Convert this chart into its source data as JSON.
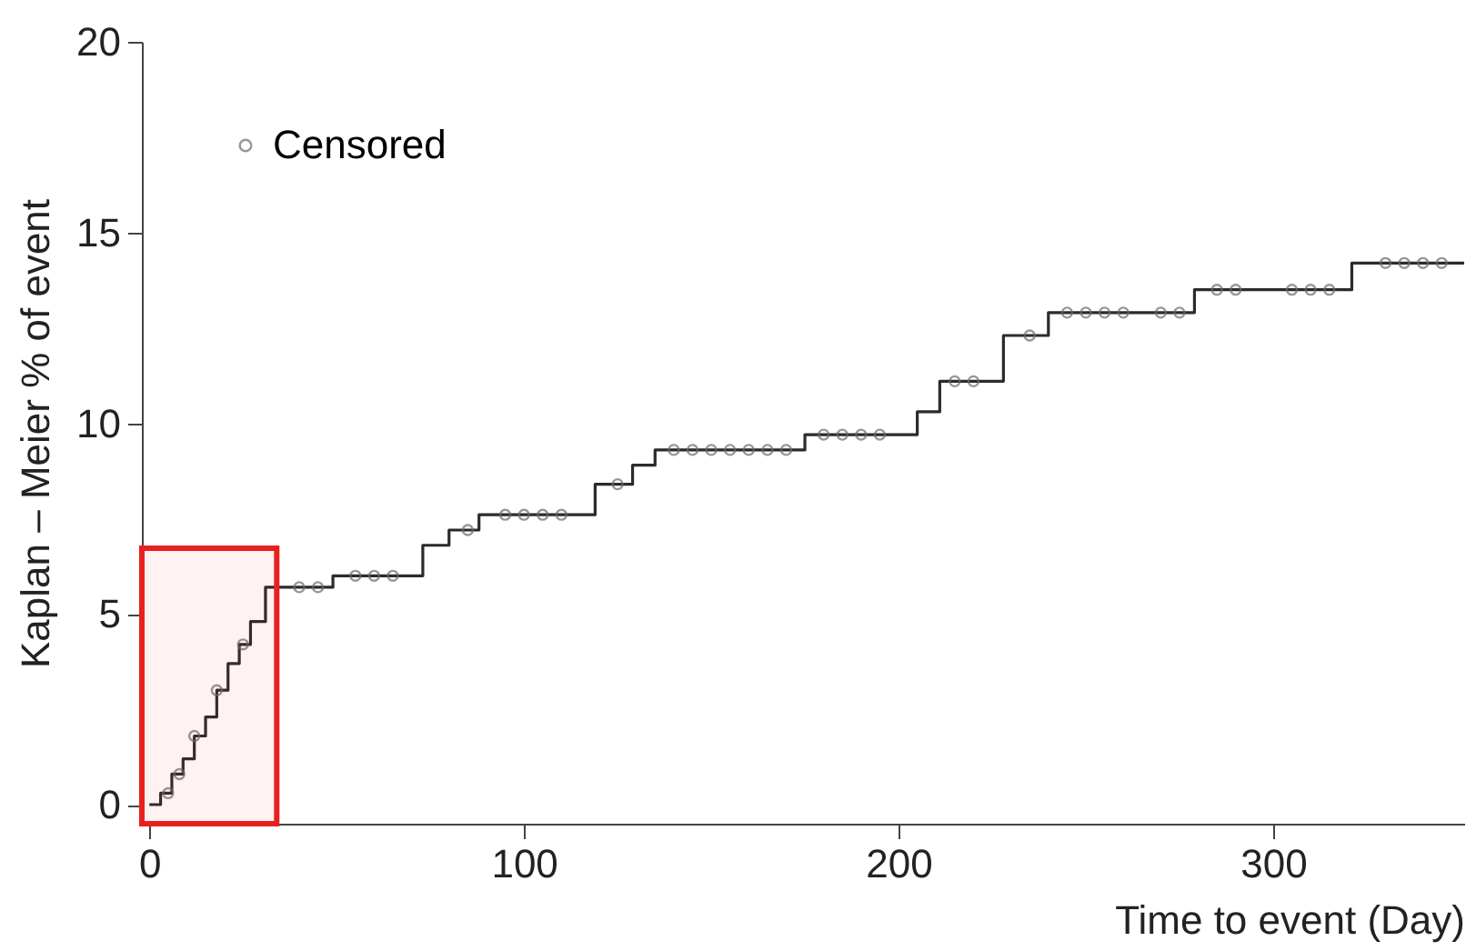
{
  "chart_data": {
    "type": "step",
    "xlabel": "Time to event (Day)",
    "ylabel": "Kaplan – Meier % of event",
    "xlim": [
      -2,
      351
    ],
    "ylim": [
      -0.5,
      20
    ],
    "xticks": [
      0,
      100,
      200,
      300
    ],
    "yticks": [
      0,
      5,
      10,
      15,
      20
    ],
    "grid": false,
    "legend": "top left",
    "series": [
      {
        "color": "#2b2b2b",
        "marker": "none",
        "x": [
          0,
          3,
          6,
          9,
          12,
          15,
          18,
          21,
          24,
          27,
          31,
          49,
          73,
          80,
          88,
          119,
          129,
          135,
          175,
          205,
          211,
          228,
          240,
          279,
          321,
          351
        ],
        "values": [
          0,
          0.3,
          0.8,
          1.2,
          1.8,
          2.3,
          3.0,
          3.7,
          4.2,
          4.8,
          5.7,
          6.0,
          6.8,
          7.2,
          7.6,
          8.4,
          8.9,
          9.3,
          9.7,
          10.3,
          11.1,
          12.3,
          12.9,
          13.5,
          14.2,
          14.2
        ]
      },
      {
        "type": "scatter",
        "name": "Censored",
        "color": "#6b6b6b",
        "marker": "circle",
        "x": [
          5,
          8,
          12,
          18,
          25,
          40,
          45,
          55,
          60,
          65,
          85,
          95,
          100,
          105,
          110,
          125,
          140,
          145,
          150,
          155,
          160,
          165,
          170,
          180,
          185,
          190,
          195,
          215,
          220,
          235,
          245,
          250,
          255,
          260,
          270,
          275,
          285,
          290,
          305,
          310,
          315,
          330,
          335,
          340,
          345
        ],
        "values": [
          0.3,
          0.8,
          1.8,
          3.0,
          4.2,
          5.7,
          5.7,
          6.0,
          6.0,
          6.0,
          7.2,
          7.6,
          7.6,
          7.6,
          7.6,
          8.4,
          9.3,
          9.3,
          9.3,
          9.3,
          9.3,
          9.3,
          9.3,
          9.7,
          9.7,
          9.7,
          9.7,
          11.1,
          11.1,
          12.3,
          12.9,
          12.9,
          12.9,
          12.9,
          12.9,
          12.9,
          13.5,
          13.5,
          13.5,
          13.5,
          13.5,
          14.2,
          14.2,
          14.2,
          14.2
        ]
      }
    ],
    "bands": [
      {
        "axis": "x",
        "from": -2,
        "to": 34,
        "color": "#e8211f"
      }
    ]
  }
}
